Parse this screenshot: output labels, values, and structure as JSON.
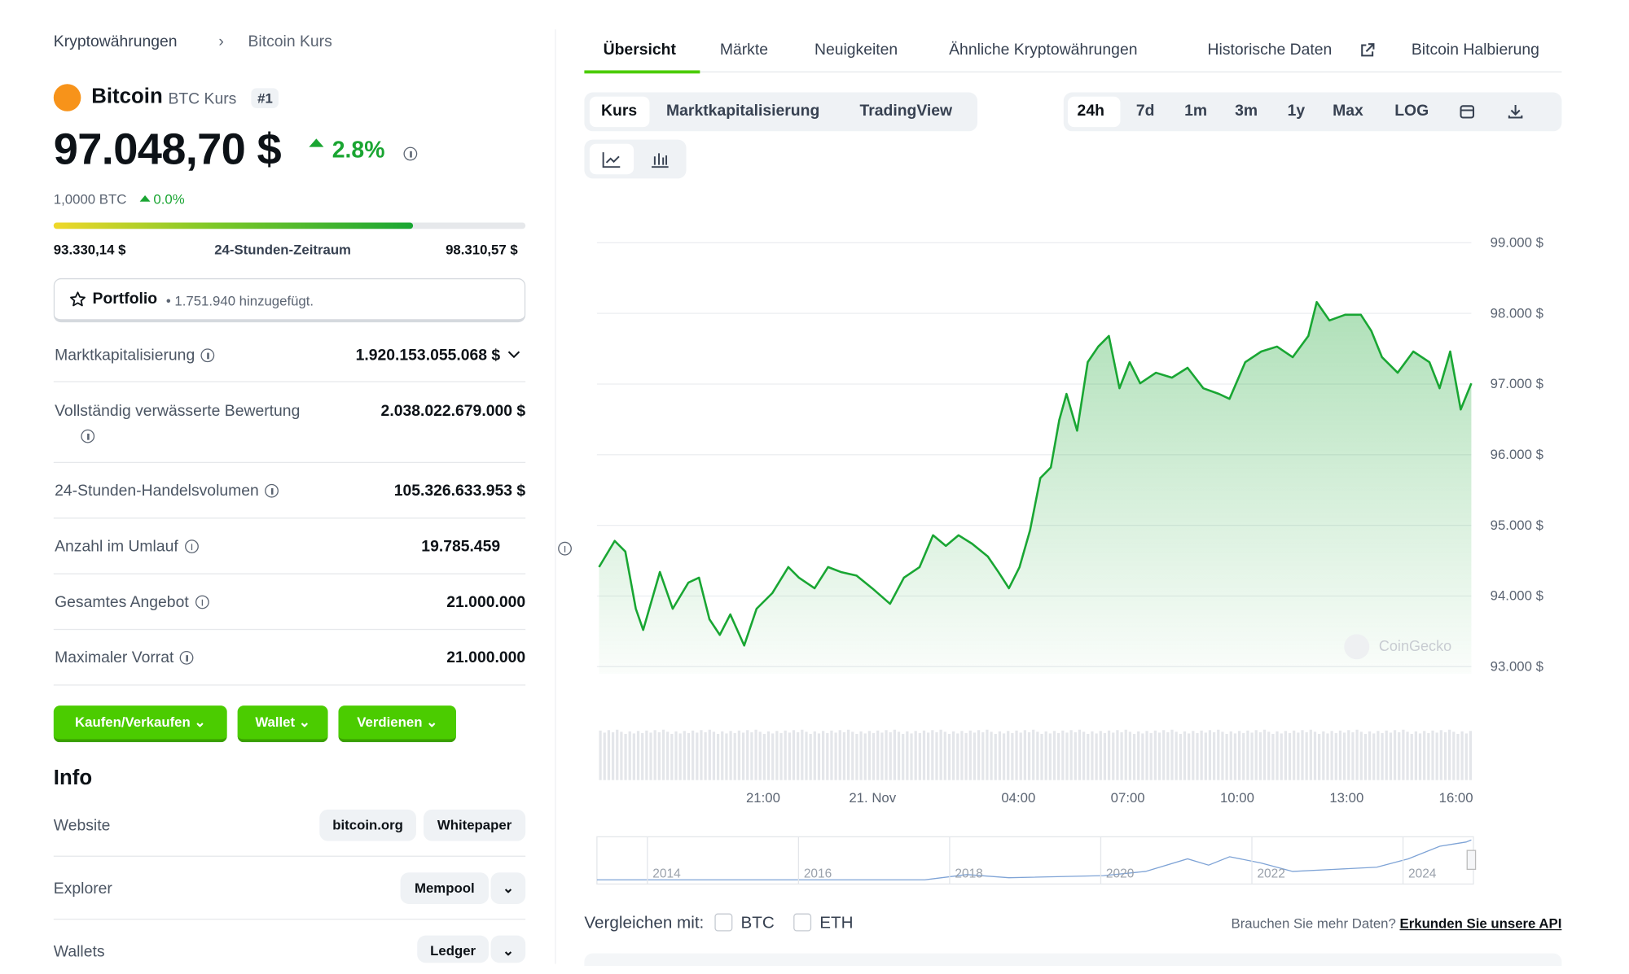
{
  "breadcrumb": [
    "Kryptowährungen",
    "Bitcoin Kurs"
  ],
  "coin": {
    "name": "Bitcoin",
    "symbol_label": "BTC Kurs",
    "rank": "#1",
    "price": "97.048,70 $",
    "change": "2.8%",
    "btc_price": "1,0000 BTC",
    "btc_change": "0.0%"
  },
  "range": {
    "low": "93.330,14 $",
    "label": "24-Stunden-Zeitraum",
    "high": "98.310,57 $"
  },
  "portfolio": {
    "label": "Portfolio",
    "added": "• 1.751.940 hinzugefügt."
  },
  "stats": [
    {
      "label": "Marktkapitalisierung",
      "value": "1.920.153.055.068 $"
    },
    {
      "label": "Vollständig verwässerte Bewertung",
      "value": "2.038.022.679.000 $"
    },
    {
      "label": "24-Stunden-Handelsvolumen",
      "value": "105.326.633.953 $"
    },
    {
      "label": "Anzahl im Umlauf",
      "value": "19.785.459"
    },
    {
      "label": "Gesamtes Angebot",
      "value": "21.000.000"
    },
    {
      "label": "Maximaler Vorrat",
      "value": "21.000.000"
    }
  ],
  "buttons": [
    "Kaufen/Verkaufen",
    "Wallet",
    "Verdienen"
  ],
  "info": {
    "title": "Info",
    "rows": [
      {
        "label": "Website",
        "links": [
          "bitcoin.org",
          "Whitepaper"
        ]
      },
      {
        "label": "Explorer",
        "links": [
          "Mempool"
        ]
      },
      {
        "label": "Wallets",
        "links": [
          "Ledger"
        ]
      }
    ]
  },
  "tabs": [
    "Übersicht",
    "Märkte",
    "Neuigkeiten",
    "Ähnliche Kryptowährungen",
    "Historische Daten",
    "Bitcoin Halbierung"
  ],
  "chart_tabs": [
    "Kurs",
    "Marktkapitalisierung",
    "TradingView"
  ],
  "ranges": [
    "24h",
    "7d",
    "1m",
    "3m",
    "1y",
    "Max",
    "LOG"
  ],
  "watermark": "CoinGecko",
  "navigator_years": [
    "2014",
    "2016",
    "2018",
    "2020",
    "2022",
    "2024"
  ],
  "compare": {
    "label": "Vergleichen mit:",
    "options": [
      "BTC",
      "ETH"
    ]
  },
  "api": {
    "text": "Brauchen Sie mehr Daten?",
    "link": "Erkunden Sie unsere API"
  },
  "chart_data": {
    "type": "area",
    "color": "#19a633",
    "x": [
      16.5,
      16.93,
      17.22,
      17.51,
      17.71,
      18.17,
      18.52,
      18.95,
      19.24,
      19.53,
      19.81,
      20.1,
      20.48,
      20.82,
      21.25,
      21.69,
      21.98,
      22.41,
      22.78,
      23.13,
      23.56,
      23.99,
      24.48,
      24.86,
      25.29,
      25.66,
      26.01,
      26.36,
      26.73,
      27.16,
      27.45,
      27.74,
      28.03,
      28.32,
      28.6,
      28.89,
      29.12,
      29.32,
      29.61,
      29.9,
      30.19,
      30.48,
      30.77,
      31.05,
      31.34,
      31.77,
      32.21,
      32.64,
      33.07,
      33.5,
      33.79,
      34.22,
      34.66,
      35.09,
      35.52,
      35.95,
      36.18,
      36.53,
      36.96,
      37.39,
      37.68,
      37.97,
      38.4,
      38.83,
      39.27,
      39.55,
      39.84,
      40.13,
      40.42
    ],
    "values": [
      94410,
      94780,
      94630,
      93820,
      93520,
      94340,
      93820,
      94190,
      94260,
      93670,
      93450,
      93740,
      93300,
      93820,
      94040,
      94410,
      94260,
      94110,
      94410,
      94340,
      94290,
      94110,
      93890,
      94260,
      94410,
      94860,
      94710,
      94860,
      94740,
      94560,
      94340,
      94110,
      94410,
      94930,
      95670,
      95820,
      96490,
      96860,
      96340,
      97310,
      97530,
      97680,
      96940,
      97310,
      97010,
      97160,
      97090,
      97230,
      96940,
      96860,
      96790,
      97310,
      97460,
      97530,
      97380,
      97680,
      98160,
      97900,
      97980,
      97980,
      97750,
      97380,
      97160,
      97460,
      97310,
      96940,
      97460,
      96640,
      97010
    ],
    "xlim": [
      16.5,
      40.42
    ],
    "xticks": [
      {
        "value": 21,
        "label": "21:00"
      },
      {
        "value": 24,
        "label": "21. Nov"
      },
      {
        "value": 28,
        "label": "04:00"
      },
      {
        "value": 31,
        "label": "07:00"
      },
      {
        "value": 34,
        "label": "10:00"
      },
      {
        "value": 37,
        "label": "13:00"
      },
      {
        "value": 40,
        "label": "16:00"
      }
    ],
    "ylim": [
      92900,
      99300
    ],
    "yticks": [
      {
        "value": 93000,
        "label": "93.000 $"
      },
      {
        "value": 94000,
        "label": "94.000 $"
      },
      {
        "value": 95000,
        "label": "95.000 $"
      },
      {
        "value": 96000,
        "label": "96.000 $"
      },
      {
        "value": 97000,
        "label": "97.000 $"
      },
      {
        "value": 98000,
        "label": "98.000 $"
      },
      {
        "value": 99000,
        "label": "99.000 $"
      }
    ],
    "grid": true
  }
}
